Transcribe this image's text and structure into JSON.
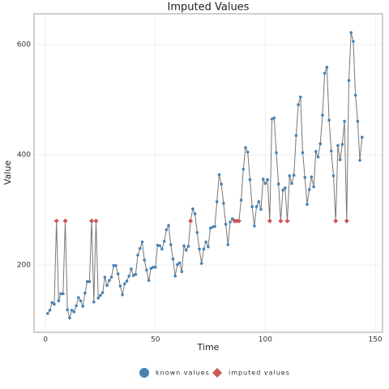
{
  "chart_data": {
    "type": "line",
    "title": "Imputed Values",
    "x_label": "Time",
    "y_label": "Value",
    "x": [
      1,
      2,
      3,
      4,
      5,
      6,
      7,
      8,
      9,
      10,
      11,
      12,
      13,
      14,
      15,
      16,
      17,
      18,
      19,
      20,
      21,
      22,
      23,
      24,
      25,
      26,
      27,
      28,
      29,
      30,
      31,
      32,
      33,
      34,
      35,
      36,
      37,
      38,
      39,
      40,
      41,
      42,
      43,
      44,
      45,
      46,
      47,
      48,
      49,
      50,
      51,
      52,
      53,
      54,
      55,
      56,
      57,
      58,
      59,
      60,
      61,
      62,
      63,
      64,
      65,
      66,
      67,
      68,
      69,
      70,
      71,
      72,
      73,
      74,
      75,
      76,
      77,
      78,
      79,
      80,
      81,
      82,
      83,
      84,
      85,
      86,
      87,
      88,
      89,
      90,
      91,
      92,
      93,
      94,
      95,
      96,
      97,
      98,
      99,
      100,
      101,
      102,
      103,
      104,
      105,
      106,
      107,
      108,
      109,
      110,
      111,
      112,
      113,
      114,
      115,
      116,
      117,
      118,
      119,
      120,
      121,
      122,
      123,
      124,
      125,
      126,
      127,
      128,
      129,
      130,
      131,
      132,
      133,
      134,
      135,
      136,
      137,
      138,
      139,
      140,
      141,
      142,
      143,
      144
    ],
    "series": [
      {
        "name": "known values",
        "color": "#4682b4",
        "values": [
          112,
          118,
          132,
          129,
          null,
          135,
          148,
          148,
          null,
          119,
          104,
          118,
          115,
          126,
          141,
          135,
          125,
          149,
          170,
          170,
          null,
          133,
          null,
          140,
          145,
          150,
          178,
          163,
          172,
          178,
          199,
          199,
          184,
          162,
          146,
          166,
          171,
          180,
          193,
          181,
          183,
          218,
          230,
          242,
          209,
          191,
          172,
          194,
          196,
          196,
          236,
          235,
          229,
          243,
          264,
          272,
          237,
          211,
          180,
          201,
          204,
          188,
          235,
          227,
          234,
          null,
          302,
          293,
          259,
          229,
          203,
          229,
          242,
          233,
          267,
          269,
          270,
          315,
          364,
          347,
          312,
          274,
          237,
          278,
          284,
          null,
          null,
          null,
          318,
          374,
          413,
          405,
          355,
          306,
          271,
          306,
          315,
          301,
          356,
          348,
          355,
          null,
          465,
          467,
          404,
          347,
          null,
          336,
          340,
          null,
          362,
          348,
          363,
          435,
          491,
          505,
          404,
          359,
          310,
          337,
          360,
          342,
          406,
          396,
          420,
          472,
          548,
          559,
          463,
          407,
          362,
          null,
          417,
          391,
          419,
          461,
          null,
          535,
          622,
          606,
          508,
          461,
          390,
          432
        ]
      },
      {
        "name": "imputed values",
        "color": "#cd5555",
        "values": [
          null,
          null,
          null,
          null,
          280,
          null,
          null,
          null,
          280,
          null,
          null,
          null,
          null,
          null,
          null,
          null,
          null,
          null,
          null,
          null,
          280,
          null,
          280,
          null,
          null,
          null,
          null,
          null,
          null,
          null,
          null,
          null,
          null,
          null,
          null,
          null,
          null,
          null,
          null,
          null,
          null,
          null,
          null,
          null,
          null,
          null,
          null,
          null,
          null,
          null,
          null,
          null,
          null,
          null,
          null,
          null,
          null,
          null,
          null,
          null,
          null,
          null,
          null,
          null,
          null,
          280,
          null,
          null,
          null,
          null,
          null,
          null,
          null,
          null,
          null,
          null,
          null,
          null,
          null,
          null,
          null,
          null,
          null,
          null,
          null,
          280,
          280,
          280,
          null,
          null,
          null,
          null,
          null,
          null,
          null,
          null,
          null,
          null,
          null,
          null,
          null,
          280,
          null,
          null,
          null,
          null,
          280,
          null,
          null,
          280,
          null,
          null,
          null,
          null,
          null,
          null,
          null,
          null,
          null,
          null,
          null,
          null,
          null,
          null,
          null,
          null,
          null,
          null,
          null,
          null,
          null,
          280,
          null,
          null,
          null,
          null,
          280,
          null,
          null,
          null,
          null,
          null,
          null,
          null
        ]
      }
    ],
    "xlim": [
      -5.2,
      153.3
    ],
    "xticks": [
      0,
      50,
      100,
      150
    ],
    "ylim": [
      78,
      656
    ],
    "yticks": [
      200,
      400,
      600
    ],
    "grid": true,
    "legend": "bottom"
  }
}
